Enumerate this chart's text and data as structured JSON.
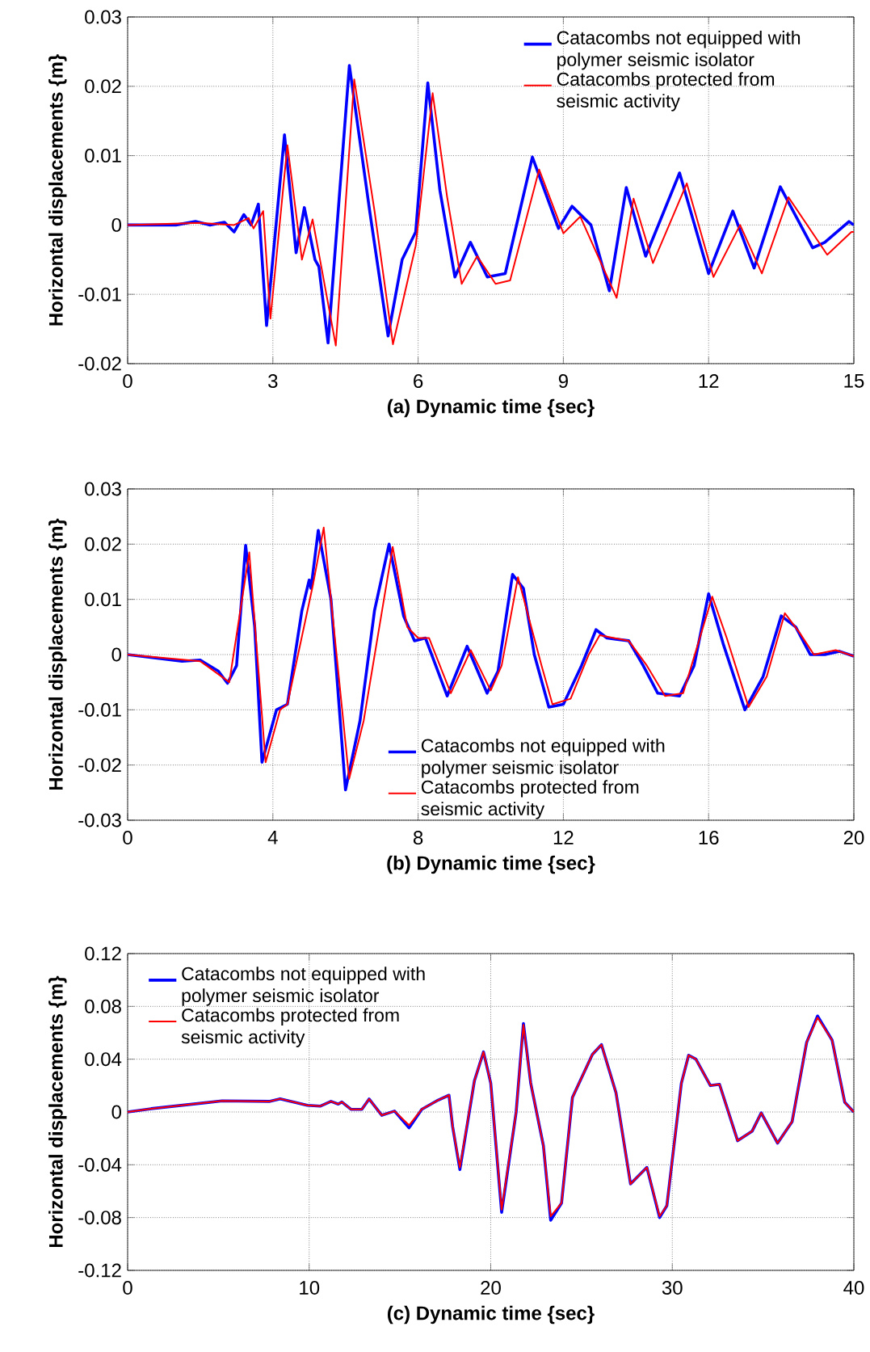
{
  "chart_data": [
    {
      "type": "line",
      "xlabel": "(a)  Dynamic time {sec}",
      "ylabel": "Horizontal displacements {m}",
      "xlim": [
        0,
        15
      ],
      "xticks": [
        0,
        3,
        6,
        9,
        12,
        15
      ],
      "ylim": [
        -0.02,
        0.03
      ],
      "yticks": [
        -0.02,
        -0.01,
        0,
        0.01,
        0.02,
        0.03
      ],
      "grid": true,
      "legend": "top right",
      "line_style": "solid",
      "series": [
        {
          "name": "Catacombs not equipped with polymer seismic isolator",
          "color": "#0000ff",
          "x": [
            0,
            1.0,
            1.4,
            1.7,
            2.0,
            2.2,
            2.4,
            2.55,
            2.7,
            2.87,
            3.24,
            3.48,
            3.65,
            3.87,
            3.95,
            4.14,
            4.58,
            5.0,
            5.38,
            5.67,
            5.95,
            6.2,
            6.45,
            6.76,
            7.08,
            7.43,
            7.8,
            8.36,
            8.9,
            9.18,
            9.57,
            9.95,
            10.3,
            10.7,
            11.4,
            12.0,
            12.5,
            12.94,
            13.48,
            14.15,
            14.4,
            14.9,
            15
          ],
          "values": [
            0,
            0,
            0.0005,
            0,
            0.0004,
            -0.001,
            0.0015,
            0,
            0.003,
            -0.0145,
            0.013,
            -0.004,
            0.0025,
            -0.005,
            -0.006,
            -0.017,
            0.023,
            0.002,
            -0.016,
            -0.005,
            -0.001,
            0.0205,
            0.005,
            -0.0075,
            -0.0025,
            -0.0075,
            -0.007,
            0.0098,
            -0.0005,
            0.0027,
            0,
            -0.0095,
            0.0054,
            -0.0045,
            0.0075,
            -0.007,
            0.002,
            -0.0062,
            0.0055,
            -0.0033,
            -0.0025,
            0.0005,
            0
          ]
        },
        {
          "name": "Catacombs protected from seismic activity",
          "color": "#ff0000",
          "x": [
            0,
            1.5,
            2.2,
            2.5,
            2.6,
            2.8,
            2.95,
            3.3,
            3.6,
            3.82,
            4.0,
            4.3,
            4.68,
            5.1,
            5.48,
            5.95,
            6.3,
            6.6,
            6.9,
            7.22,
            7.6,
            7.9,
            8.5,
            9.0,
            9.35,
            10.1,
            10.45,
            10.85,
            11.55,
            12.1,
            12.65,
            13.1,
            13.65,
            14.45,
            14.95,
            15
          ],
          "values": [
            0,
            0.0003,
            0,
            0.001,
            -0.0005,
            0.002,
            -0.0135,
            0.0115,
            -0.005,
            0.0008,
            -0.006,
            -0.0174,
            0.021,
            0.002,
            -0.0172,
            -0.003,
            0.019,
            0.004,
            -0.0085,
            -0.0045,
            -0.0085,
            -0.008,
            0.008,
            -0.0012,
            0.0012,
            -0.0105,
            0.0038,
            -0.0055,
            0.006,
            -0.0075,
            0,
            -0.007,
            0.004,
            -0.0043,
            -0.001,
            -0.001
          ]
        }
      ]
    },
    {
      "type": "line",
      "xlabel": "(b)  Dynamic time {sec}",
      "ylabel": "Horizontal displacements {m}",
      "xlim": [
        0,
        20
      ],
      "xticks": [
        0,
        4,
        8,
        12,
        16,
        20
      ],
      "ylim": [
        -0.03,
        0.03
      ],
      "yticks": [
        -0.03,
        -0.02,
        -0.01,
        0,
        0.01,
        0.02,
        0.03
      ],
      "grid": true,
      "legend": "bottom",
      "line_style": "solid",
      "series": [
        {
          "name": "Catacombs not equipped with polymer seismic isolator",
          "color": "#0000ff",
          "x": [
            0,
            1.5,
            2,
            2.5,
            2.75,
            3.0,
            3.25,
            3.5,
            3.7,
            4.1,
            4.4,
            4.8,
            5.0,
            5.05,
            5.25,
            5.6,
            6.0,
            6.4,
            6.8,
            7.2,
            7.6,
            7.9,
            8.2,
            8.8,
            9.35,
            9.9,
            10.2,
            10.6,
            10.9,
            11.2,
            11.6,
            12.0,
            12.5,
            12.9,
            13.2,
            13.8,
            14.2,
            14.6,
            15.2,
            15.6,
            16.0,
            16.4,
            17.0,
            17.5,
            18.0,
            18.4,
            18.8,
            19.2,
            19.6,
            20
          ],
          "values": [
            0,
            -0.0012,
            -0.001,
            -0.003,
            -0.0052,
            -0.002,
            0.0198,
            0.005,
            -0.0195,
            -0.01,
            -0.009,
            0.008,
            0.0135,
            0.012,
            0.0225,
            0.01,
            -0.0245,
            -0.012,
            0.008,
            0.02,
            0.007,
            0.0025,
            0.003,
            -0.0075,
            0.0015,
            -0.007,
            -0.003,
            0.0145,
            0.012,
            0,
            -0.0095,
            -0.009,
            -0.002,
            0.0045,
            0.003,
            0.0025,
            -0.002,
            -0.007,
            -0.0075,
            -0.002,
            0.011,
            0.002,
            -0.01,
            -0.004,
            0.007,
            0.005,
            0,
            0,
            0.0006,
            -0.0003
          ]
        },
        {
          "name": "Catacombs protected from seismic activity",
          "color": "#ff0000",
          "x": [
            0,
            2,
            2.8,
            3.35,
            3.8,
            4.2,
            4.4,
            5.1,
            5.4,
            6.1,
            6.5,
            7.3,
            7.7,
            8.0,
            8.3,
            8.9,
            9.45,
            10.0,
            10.3,
            10.75,
            11.4,
            11.7,
            12.2,
            12.7,
            13.0,
            13.8,
            14.3,
            14.8,
            15.3,
            16.1,
            16.5,
            17.1,
            17.6,
            18.1,
            18.5,
            18.9,
            19.5,
            20
          ],
          "values": [
            0,
            -0.0012,
            -0.005,
            0.0185,
            -0.0195,
            -0.01,
            -0.009,
            0.0125,
            0.023,
            -0.0225,
            -0.012,
            0.0195,
            0.005,
            0.003,
            0.003,
            -0.007,
            0.0008,
            -0.0065,
            -0.002,
            0.014,
            -0.002,
            -0.009,
            -0.008,
            0,
            0.0035,
            0.0025,
            -0.002,
            -0.0075,
            -0.007,
            0.0105,
            0.003,
            -0.0095,
            -0.004,
            0.0075,
            0.004,
            0,
            0.0008,
            -0.0003
          ]
        }
      ]
    },
    {
      "type": "line",
      "xlabel": "(c)  Dynamic time {sec}",
      "ylabel": "Horizontal displacements {m}",
      "xlim": [
        0,
        40
      ],
      "xticks": [
        0,
        10,
        20,
        30,
        40
      ],
      "ylim": [
        -0.12,
        0.12
      ],
      "yticks": [
        -0.12,
        -0.08,
        -0.04,
        0,
        0.04,
        0.08,
        0.12
      ],
      "grid": true,
      "legend": "top left",
      "line_style": "solid",
      "series": [
        {
          "name": "Catacombs not equipped with polymer seismic isolator",
          "color": "#0000ff",
          "x": [
            0,
            1.3,
            5.2,
            7.8,
            8.4,
            9.9,
            10.6,
            11.2,
            11.6,
            11.8,
            12.3,
            12.9,
            13.3,
            14.0,
            14.7,
            15.5,
            16.2,
            17.1,
            17.7,
            17.9,
            18.3,
            19.1,
            19.6,
            20.0,
            20.6,
            21.4,
            21.8,
            22.2,
            22.9,
            23.3,
            23.9,
            24.5,
            25.6,
            26.1,
            26.9,
            27.7,
            28.6,
            29.3,
            29.7,
            30.5,
            30.9,
            31.3,
            32.1,
            32.6,
            33.6,
            34.4,
            34.9,
            35.8,
            36.6,
            37.4,
            38.0,
            38.8,
            39.5,
            40
          ],
          "values": [
            0,
            0.0025,
            0.0084,
            0.008,
            0.01,
            0.005,
            0.0044,
            0.008,
            0.006,
            0.0076,
            0.002,
            0.002,
            0.0098,
            -0.0025,
            0.0007,
            -0.012,
            0.002,
            0.009,
            0.0127,
            -0.011,
            -0.0436,
            0.0236,
            0.0455,
            0.0218,
            -0.076,
            0,
            0.067,
            0.022,
            -0.0255,
            -0.082,
            -0.069,
            0.011,
            0.0436,
            0.051,
            0.0145,
            -0.0545,
            -0.042,
            -0.08,
            -0.071,
            0.0218,
            0.043,
            0.04,
            0.02,
            0.021,
            -0.0218,
            -0.0145,
            -0.0007,
            -0.0236,
            -0.0073,
            0.0527,
            0.0727,
            0.0545,
            0.0073,
            0
          ]
        },
        {
          "name": "Catacombs protected from seismic activity",
          "color": "#ff0000",
          "x": [
            0,
            1.3,
            5.2,
            7.8,
            8.4,
            9.9,
            10.6,
            11.2,
            11.6,
            11.8,
            12.3,
            12.9,
            13.3,
            14.0,
            14.7,
            15.5,
            16.2,
            17.1,
            17.7,
            17.9,
            18.3,
            19.1,
            19.6,
            20.0,
            20.6,
            21.4,
            21.8,
            22.2,
            22.9,
            23.3,
            23.9,
            24.5,
            25.6,
            26.1,
            26.9,
            27.7,
            28.6,
            29.3,
            29.7,
            30.5,
            30.9,
            31.3,
            32.1,
            32.6,
            33.6,
            34.4,
            34.9,
            35.8,
            36.6,
            37.4,
            38.0,
            38.8,
            39.5,
            40
          ],
          "values": [
            0,
            0.0025,
            0.0084,
            0.008,
            0.01,
            0.005,
            0.0044,
            0.008,
            0.006,
            0.0076,
            0.002,
            0.002,
            0.0098,
            -0.0025,
            0.0007,
            -0.01,
            0.002,
            0.009,
            0.0127,
            -0.011,
            -0.042,
            0.0236,
            0.0455,
            0.0218,
            -0.074,
            0,
            0.066,
            0.022,
            -0.0255,
            -0.079,
            -0.069,
            0.011,
            0.0436,
            0.051,
            0.0145,
            -0.0545,
            -0.042,
            -0.079,
            -0.071,
            0.0218,
            0.043,
            0.04,
            0.02,
            0.021,
            -0.0218,
            -0.0145,
            -0.0007,
            -0.0236,
            -0.0073,
            0.0527,
            0.0715,
            0.0545,
            0.0073,
            0
          ]
        }
      ]
    }
  ]
}
